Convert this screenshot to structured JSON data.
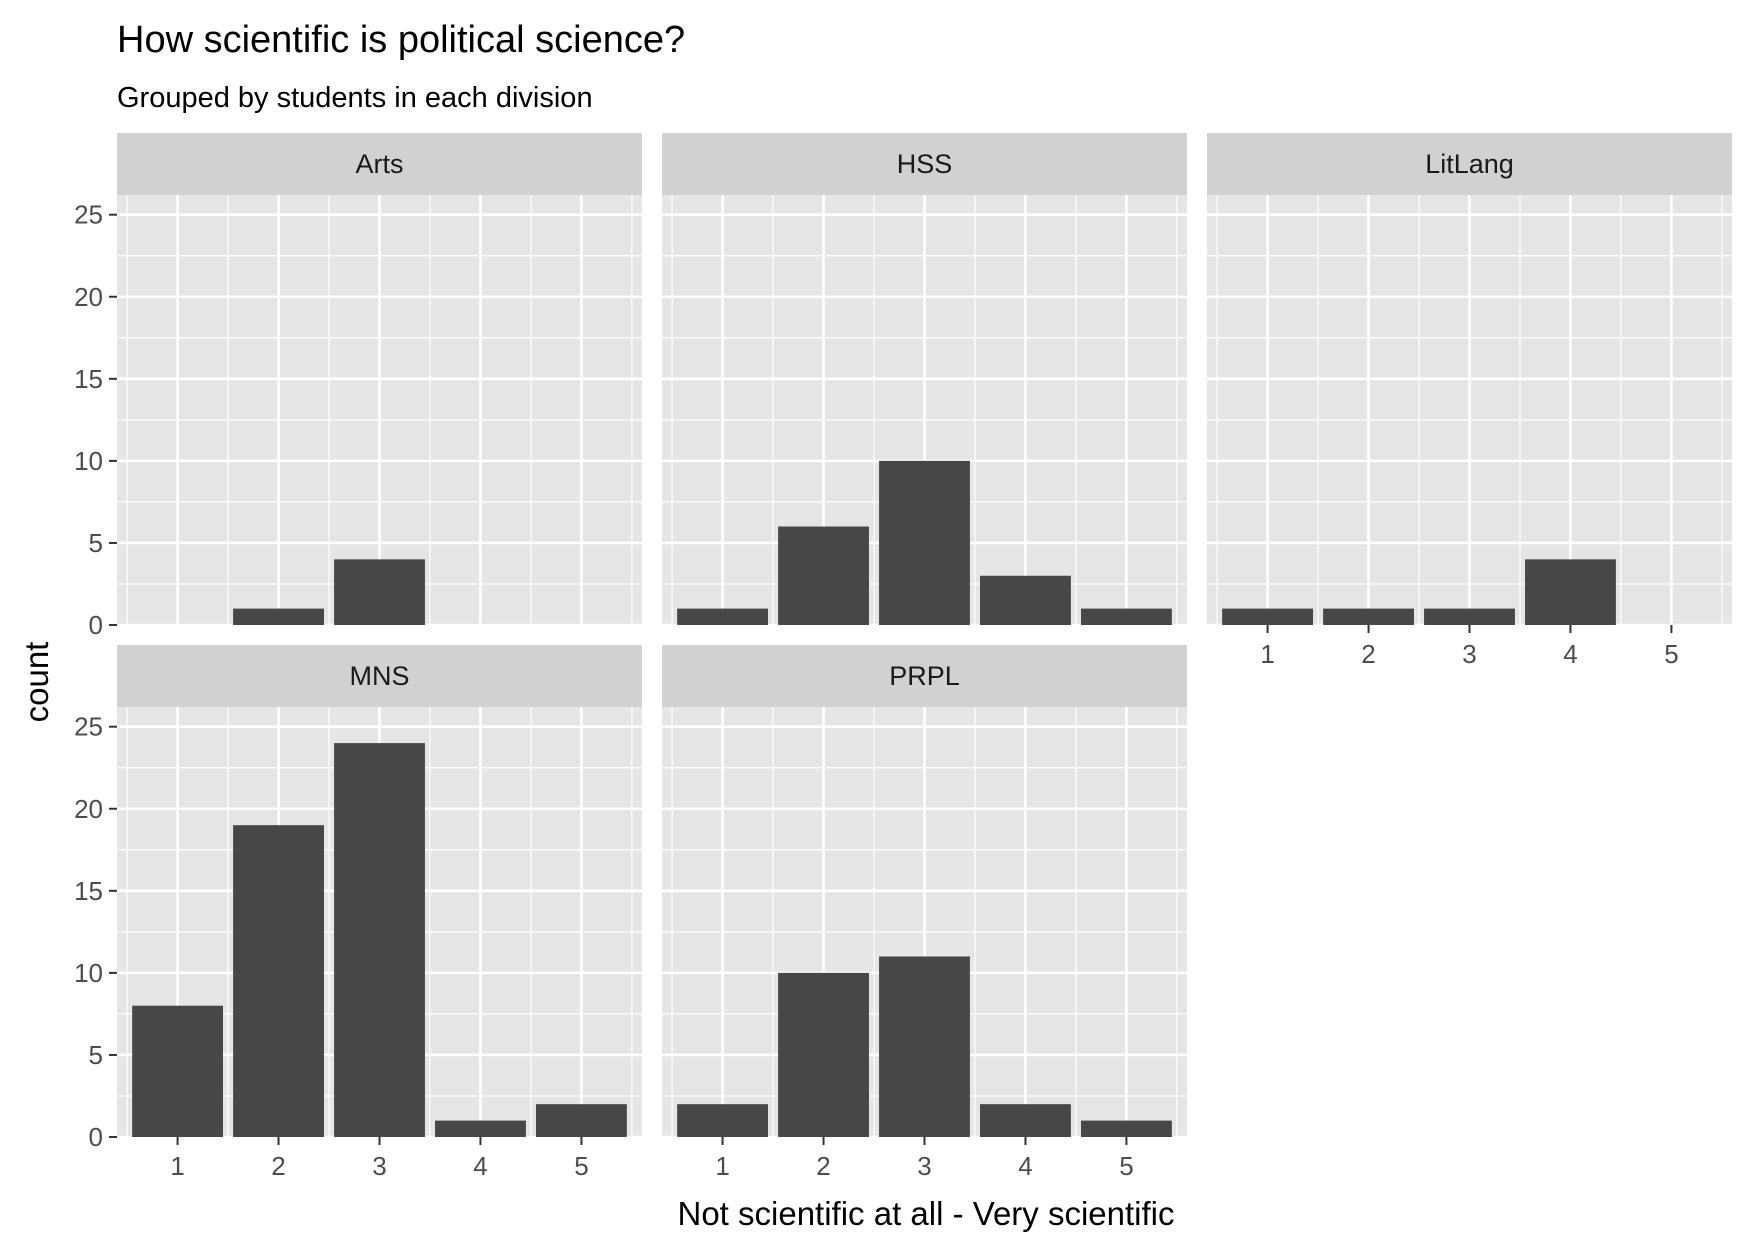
{
  "chart_data": {
    "type": "bar",
    "title": "How scientific is political science?",
    "subtitle": "Grouped by students in each division",
    "xlabel": "Not scientific at all - Very scientific",
    "ylabel": "count",
    "categories": [
      "1",
      "2",
      "3",
      "4",
      "5"
    ],
    "yticks": [
      "0",
      "5",
      "10",
      "15",
      "20",
      "25"
    ],
    "ylim": [
      0,
      26.2
    ],
    "grid": true,
    "legend": "none",
    "colors": {
      "bar": "#474747",
      "panel": "#e5e5e5",
      "strip": "#d1d1d1",
      "grid": "#ffffff"
    },
    "facets": [
      {
        "name": "Arts",
        "values": [
          0,
          1,
          4,
          0,
          0
        ]
      },
      {
        "name": "HSS",
        "values": [
          1,
          6,
          10,
          3,
          1
        ]
      },
      {
        "name": "LitLang",
        "values": [
          1,
          1,
          1,
          4,
          0
        ]
      },
      {
        "name": "MNS",
        "values": [
          8,
          19,
          24,
          1,
          2
        ]
      },
      {
        "name": "PRPL",
        "values": [
          2,
          10,
          11,
          2,
          1
        ]
      }
    ]
  }
}
